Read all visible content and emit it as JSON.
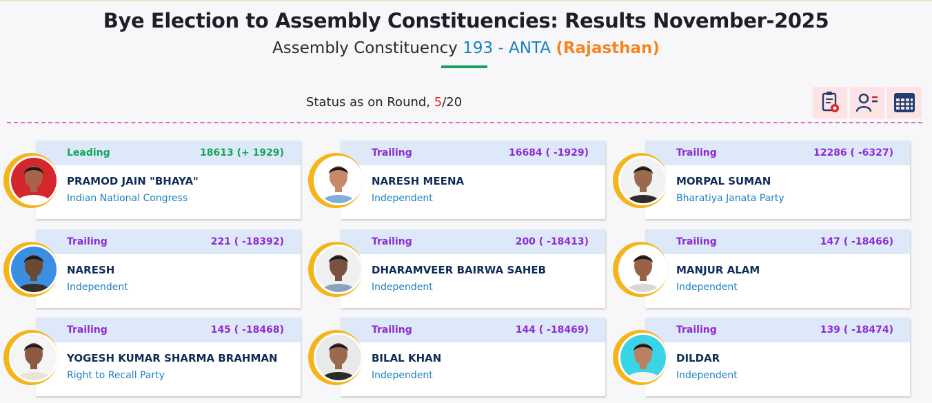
{
  "header": {
    "title": "Bye Election to Assembly Constituencies: Results November-2025",
    "subtitle_prefix": "Assembly Constituency",
    "constituency": "193 - ANTA",
    "state": "(Rajasthan)"
  },
  "status": {
    "label": "Status as on Round,",
    "round_current": "5",
    "round_total": "/20"
  },
  "toolbar": {
    "icons": [
      "report-icon",
      "candidate-list-icon",
      "table-view-icon"
    ]
  },
  "colors": {
    "leading": "#16a35c",
    "trailing": "#8e2bd1",
    "party": "#1a7fc1",
    "ring": "#f4b41a"
  },
  "candidates": [
    {
      "status": "Leading",
      "votes": "18613 (+ 1929)",
      "name": "PRAMOD JAIN \"BHAYA\"",
      "party": "Indian National Congress",
      "bg": "#d3272c",
      "skin": "#a8644a",
      "shirt": "#ffffff"
    },
    {
      "status": "Trailing",
      "votes": "16684 ( -1929)",
      "name": "NARESH MEENA",
      "party": "Independent",
      "bg": "#ffffff",
      "skin": "#c68a6a",
      "shirt": "#7fb0dc"
    },
    {
      "status": "Trailing",
      "votes": "12286 ( -6327)",
      "name": "MORPAL SUMAN",
      "party": "Bharatiya Janata Party",
      "bg": "#f2f2f2",
      "skin": "#9a6a4c",
      "shirt": "#2d2d2d"
    },
    {
      "status": "Trailing",
      "votes": "221 ( -18392)",
      "name": "NARESH",
      "party": "Independent",
      "bg": "#3b8fe0",
      "skin": "#6b4a35",
      "shirt": "#3a2e26"
    },
    {
      "status": "Trailing",
      "votes": "200 ( -18413)",
      "name": "DHARAMVEER BAIRWA SAHEB",
      "party": "Independent",
      "bg": "#f0f0f0",
      "skin": "#7a5240",
      "shirt": "#8aa4bd"
    },
    {
      "status": "Trailing",
      "votes": "147 ( -18466)",
      "name": "MANJUR ALAM",
      "party": "Independent",
      "bg": "#ffffff",
      "skin": "#9a6244",
      "shirt": "#d8d8d8"
    },
    {
      "status": "Trailing",
      "votes": "145 ( -18468)",
      "name": "YOGESH KUMAR SHARMA BRAHMAN",
      "party": "Right to Recall Party",
      "bg": "#f5f5f5",
      "skin": "#8c5a40",
      "shirt": "#e8e4d8"
    },
    {
      "status": "Trailing",
      "votes": "144 ( -18469)",
      "name": "BILAL KHAN",
      "party": "Independent",
      "bg": "#e9e9e9",
      "skin": "#9b6a4c",
      "shirt": "#2a2a2a"
    },
    {
      "status": "Trailing",
      "votes": "139 ( -18474)",
      "name": "DILDAR",
      "party": "Independent",
      "bg": "#39d5e6",
      "skin": "#b98062",
      "shirt": "#f2f2f2"
    }
  ]
}
